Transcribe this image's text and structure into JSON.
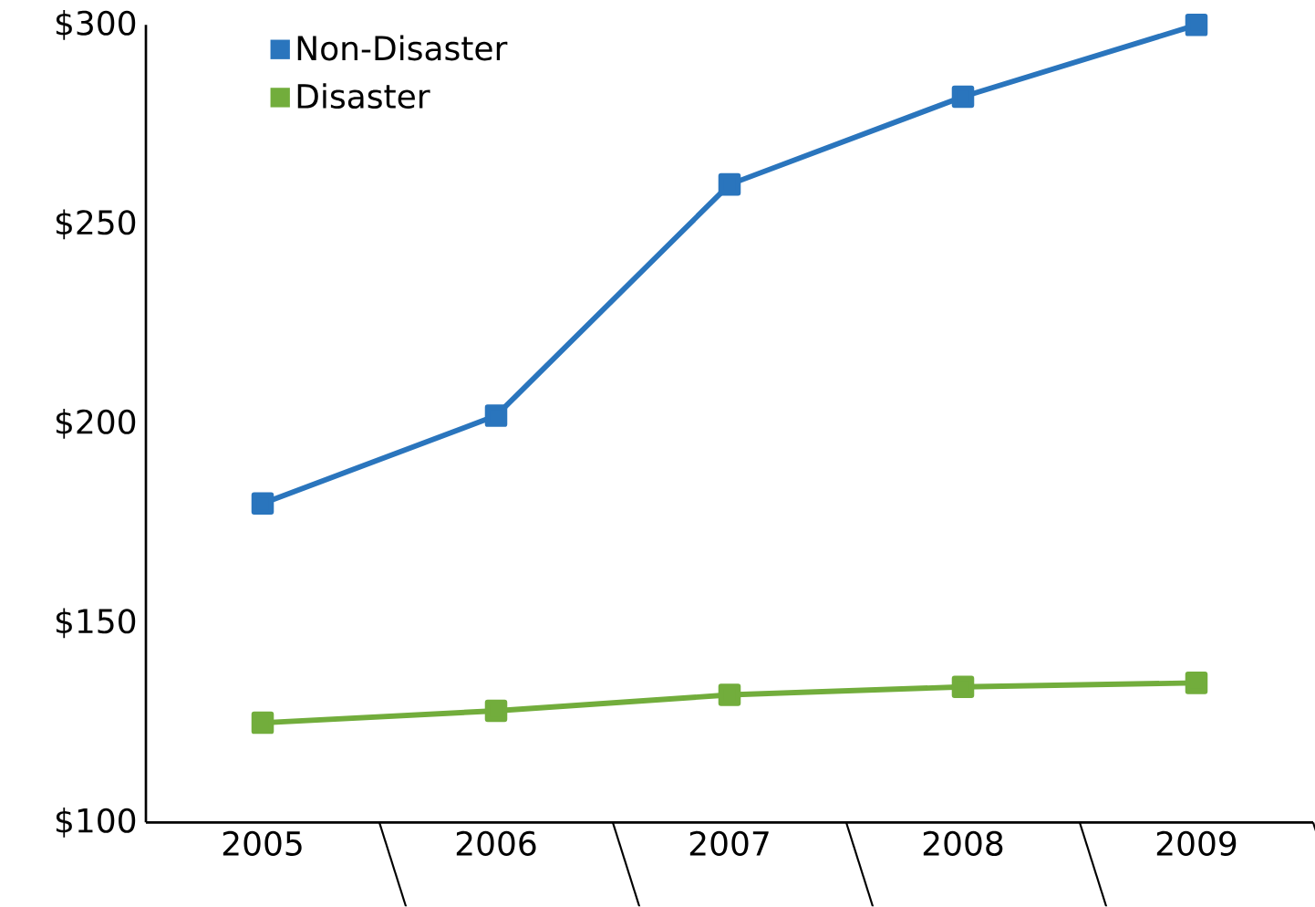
{
  "chart_data": {
    "type": "line",
    "categories": [
      "2005",
      "2006",
      "2007",
      "2008",
      "2009"
    ],
    "series": [
      {
        "name": "Non-Disaster",
        "color": "#2a75bd",
        "values": [
          180,
          202,
          260,
          282,
          300
        ]
      },
      {
        "name": "Disaster",
        "color": "#72ad3c",
        "values": [
          125,
          128,
          132,
          134,
          135
        ]
      }
    ],
    "ylim": [
      100,
      300
    ],
    "yticks": [
      {
        "value": 100,
        "label": "$100"
      },
      {
        "value": 150,
        "label": "$150"
      },
      {
        "value": 200,
        "label": "$200"
      },
      {
        "value": 250,
        "label": "$250"
      },
      {
        "value": 300,
        "label": "$300"
      }
    ],
    "marker": "square",
    "line_style": "solid",
    "legend": "top left",
    "grid": false
  }
}
